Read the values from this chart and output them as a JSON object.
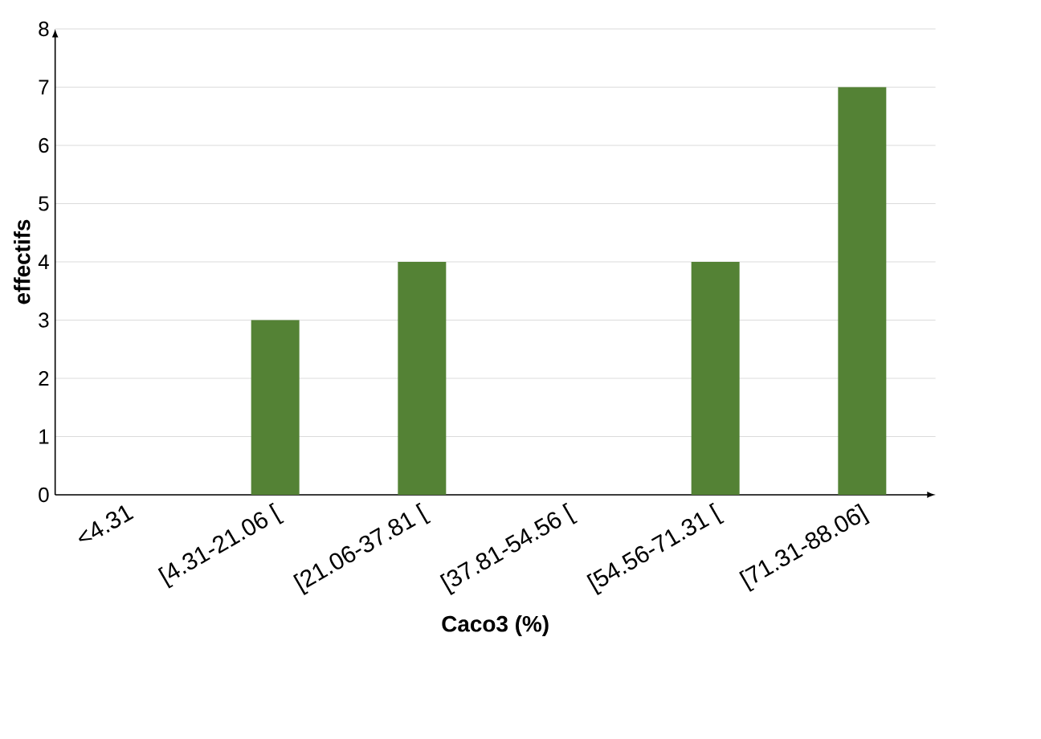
{
  "chart_data": {
    "type": "bar",
    "xlabel": "Caco3 (%)",
    "ylabel": "effectifs",
    "categories": [
      "<4.31",
      "[4.31-21.06 [",
      "[21.06-37.81 [",
      "[37.81-54.56 [",
      "[54.56-71.31 [",
      "[71.31-88.06]"
    ],
    "values": [
      0,
      3,
      4,
      0,
      4,
      7
    ],
    "color": "#548235",
    "ylim": [
      0,
      8
    ],
    "yticks": [
      0,
      1,
      2,
      3,
      4,
      5,
      6,
      7,
      8
    ],
    "grid": "y"
  }
}
